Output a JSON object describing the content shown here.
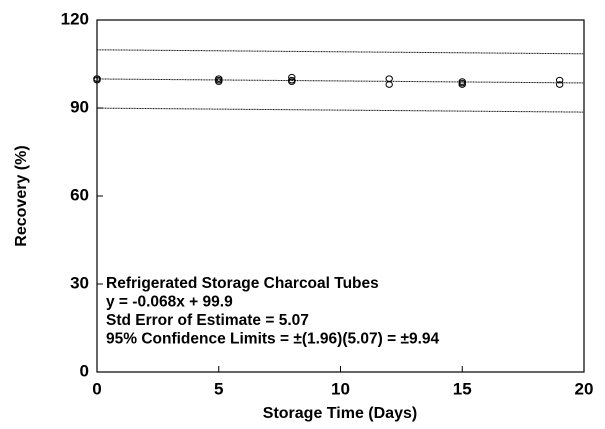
{
  "chart_data": {
    "type": "scatter",
    "x_label": "Storage Time (Days)",
    "y_label": "Recovery (%)",
    "annotations": [
      "Refrigerated Storage Charcoal Tubes",
      "y = -0.068x + 99.9",
      "Std Error of Estimate = 5.07",
      "95% Confidence Limits = ±(1.96)(5.07) = ±9.94"
    ],
    "points": {
      "color": "#000000",
      "x": [
        0,
        0,
        0,
        5,
        5,
        5,
        8,
        8,
        8,
        12,
        12,
        15,
        15,
        15,
        19,
        19
      ],
      "values": [
        100,
        99.5,
        100,
        100,
        99,
        99.5,
        100.5,
        99.5,
        99,
        100,
        98,
        99,
        98,
        98.5,
        99.5,
        98
      ]
    },
    "lines": [
      {
        "x": [
          0,
          20
        ],
        "values": [
          109.84,
          108.48
        ]
      },
      {
        "x": [
          0,
          20
        ],
        "values": [
          99.9,
          98.54
        ]
      },
      {
        "x": [
          0,
          20
        ],
        "values": [
          89.96,
          88.6
        ]
      }
    ],
    "xlim": [
      0,
      20
    ],
    "xticks": [
      0,
      5,
      10,
      15,
      20
    ],
    "ylim": [
      0,
      120
    ],
    "yticks": [
      0,
      30,
      60,
      90,
      120
    ],
    "grid": false
  }
}
